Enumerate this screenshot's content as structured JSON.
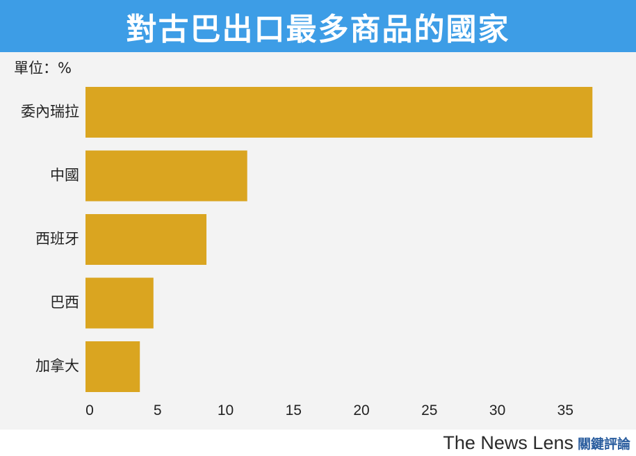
{
  "header": {
    "title": "對古巴出口最多商品的國家",
    "unit": "單位：%"
  },
  "chart_data": {
    "type": "bar",
    "orientation": "horizontal",
    "title": "對古巴出口最多商品的國家",
    "unit": "單位：%",
    "categories": [
      "委內瑞拉",
      "中國",
      "西班牙",
      "巴西",
      "加拿大"
    ],
    "values": [
      37.3,
      11.9,
      8.9,
      5.0,
      4.0
    ],
    "xlim": [
      0,
      38
    ],
    "x_ticks": [
      0,
      5,
      10,
      15,
      20,
      25,
      30,
      35
    ],
    "grid": false,
    "legend": "none",
    "bar_color": "#daa520"
  },
  "footer": {
    "brand_en": "The News Lens",
    "brand_zh": "關鍵評論"
  },
  "colors": {
    "title_bg": "#3d9de6",
    "plot_bg": "#f3f3f3",
    "bar": "#daa520"
  }
}
